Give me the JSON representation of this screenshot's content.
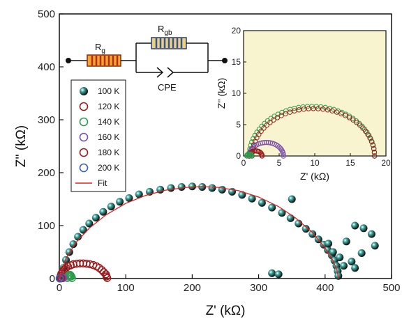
{
  "chart_data": {
    "type": "scatter",
    "xlabel": "Z' (kΩ)",
    "ylabel": "Z'' (kΩ)",
    "xlim": [
      0,
      500
    ],
    "ylim": [
      0,
      500
    ],
    "xticks": [
      "0",
      "100",
      "200",
      "300",
      "400",
      "500"
    ],
    "yticks": [
      "0",
      "100",
      "200",
      "300",
      "400",
      "500"
    ],
    "legend_position": "left",
    "series": [
      {
        "name": "100 K",
        "color": "#1f6b66",
        "marker": "sphere",
        "x": [
          3,
          6,
          10,
          15,
          21,
          28,
          36,
          45,
          55,
          66,
          78,
          91,
          105,
          120,
          136,
          152,
          168,
          184,
          200,
          215,
          230,
          245,
          260,
          275,
          290,
          305,
          320,
          335,
          348,
          360,
          371,
          381,
          390,
          398,
          404,
          410,
          414,
          417,
          419,
          420,
          405,
          412,
          422,
          428,
          432,
          440,
          445,
          455,
          475,
          320,
          330,
          350,
          458,
          470,
          445
        ],
        "y": [
          5,
          20,
          35,
          50,
          65,
          79,
          92,
          104,
          115,
          126,
          136,
          145,
          152,
          159,
          164,
          168,
          171,
          173,
          174,
          173,
          171,
          168,
          164,
          158,
          151,
          143,
          134,
          124,
          114,
          104,
          94,
          84,
          74,
          64,
          54,
          44,
          34,
          24,
          14,
          5,
          66,
          50,
          40,
          24,
          70,
          32,
          100,
          48,
          62,
          10,
          8,
          150,
          95,
          84,
          20
        ]
      },
      {
        "name": "120 K",
        "color": "#9b1b1b",
        "marker": "open-circle",
        "x": [
          1,
          2,
          3,
          5,
          7,
          10,
          13,
          17,
          21,
          26,
          31,
          36,
          41,
          46,
          51,
          56,
          60,
          64,
          67,
          70,
          71,
          72
        ],
        "y": [
          1,
          5,
          9,
          13,
          17,
          20,
          23,
          25,
          27,
          28,
          28.5,
          28.5,
          28,
          27,
          25.5,
          23,
          20,
          16,
          12,
          8,
          4,
          1
        ]
      },
      {
        "name": "140 K",
        "color": "#2e9b4e",
        "marker": "open-circle",
        "x": [
          12,
          13,
          14,
          15,
          16,
          17,
          18,
          19
        ],
        "y": [
          1,
          4,
          6,
          7,
          7,
          6,
          4,
          1
        ]
      },
      {
        "name": "160 K",
        "color": "#7b4fa8",
        "marker": "open-circle",
        "x": [
          2,
          3,
          4,
          5,
          6
        ],
        "y": [
          1,
          2,
          2.5,
          2,
          1
        ]
      },
      {
        "name": "180 K",
        "color": "#9b1b1b",
        "marker": "open-circle",
        "x": [
          1,
          1.5,
          2,
          2.5,
          3
        ],
        "y": [
          0.5,
          1,
          1.2,
          1,
          0.5
        ]
      },
      {
        "name": "200 K",
        "color": "#3d5fb0",
        "marker": "open-circle",
        "x": [
          0.5,
          0.8,
          1
        ],
        "y": [
          0.2,
          0.4,
          0.2
        ]
      },
      {
        "name": "Fit",
        "color": "#e02020",
        "marker": "line",
        "x": [
          0,
          10,
          25,
          45,
          70,
          100,
          130,
          160,
          190,
          215,
          240,
          270,
          300,
          330,
          355,
          380,
          400,
          412,
          418,
          420
        ],
        "y": [
          0,
          38,
          68,
          95,
          120,
          142,
          157,
          167,
          172,
          174,
          172,
          166,
          154,
          136,
          115,
          88,
          58,
          34,
          15,
          0
        ]
      }
    ],
    "inset": {
      "xlabel": "Z' (kΩ)",
      "ylabel": "Z'' (kΩ)",
      "xlim": [
        0,
        20
      ],
      "ylim": [
        0,
        20
      ],
      "xticks": [
        "0",
        "5",
        "10",
        "15",
        "20"
      ],
      "yticks": [
        "0",
        "5",
        "10",
        "15",
        "20"
      ],
      "background": "#f8f4d0",
      "series": [
        {
          "name": "140 K",
          "center": 9.6,
          "radius": 8.8,
          "depress": 0.9,
          "color": "#2e9b4e",
          "points": 44
        },
        {
          "name": "120 K",
          "center": 9.8,
          "radius": 8.6,
          "depress": 0.88,
          "color": "#9b1b1b",
          "points": 40
        },
        {
          "name": "160 K",
          "center": 3.2,
          "radius": 2.4,
          "depress": 0.9,
          "color": "#7b4fa8",
          "points": 26
        },
        {
          "name": "180 K",
          "center": 1.7,
          "radius": 0.9,
          "depress": 0.9,
          "color": "#9b1b1b",
          "points": 14
        },
        {
          "name": "200 K",
          "center": 0.8,
          "radius": 0.35,
          "depress": 0.9,
          "color": "#2e9b4e",
          "points": 8
        }
      ]
    },
    "circuit": {
      "r_g_main": "R",
      "r_g_sub": "g",
      "r_gb_main": "R",
      "r_gb_sub": "gb",
      "cpe_label": "CPE"
    }
  }
}
